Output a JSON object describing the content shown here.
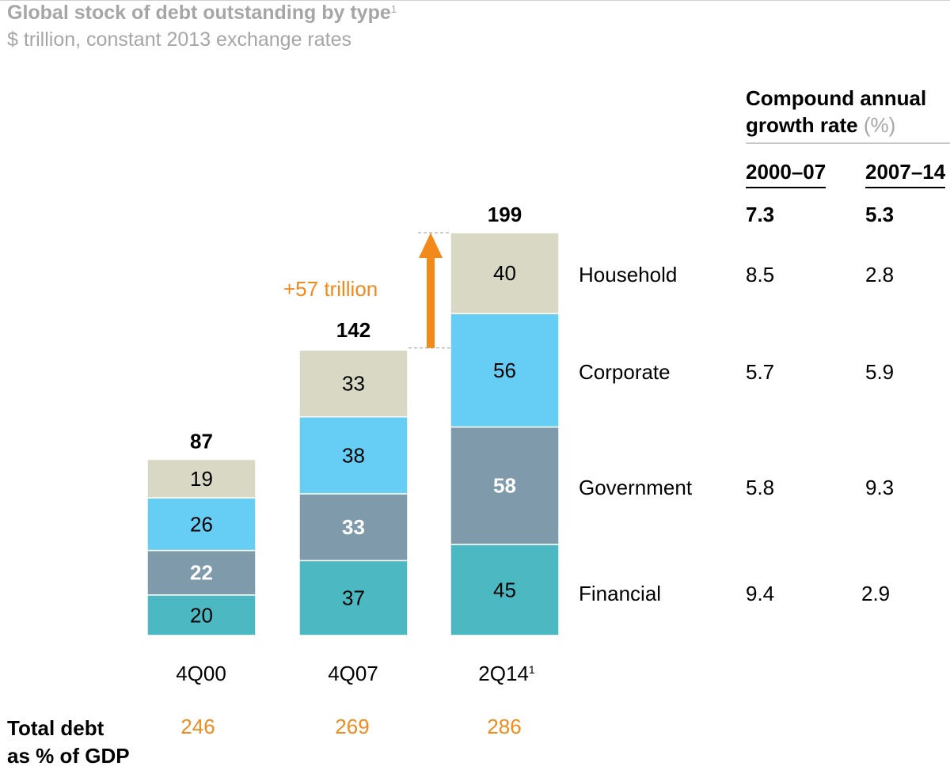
{
  "title": "Global stock of debt outstanding by type",
  "title_footnote": "1",
  "subtitle": "$ trillion, constant 2013 exchange rates",
  "chart_data": {
    "type": "bar",
    "stacked": true,
    "categories": [
      "4Q00",
      "4Q07",
      "2Q14"
    ],
    "category_footnotes": [
      "",
      "",
      "1"
    ],
    "series": [
      {
        "name": "Financial",
        "values": [
          20,
          37,
          45
        ],
        "color": "#4bb8c2"
      },
      {
        "name": "Government",
        "values": [
          22,
          33,
          58
        ],
        "color": "#7f9aab"
      },
      {
        "name": "Corporate",
        "values": [
          26,
          38,
          56
        ],
        "color": "#66cdf4"
      },
      {
        "name": "Household",
        "values": [
          19,
          33,
          40
        ],
        "color": "#d9d8c4"
      }
    ],
    "totals": [
      87,
      142,
      199
    ],
    "bold_series": "Government",
    "annotation": "+57 trillion",
    "annotation_color": "#f28a1b",
    "ylim": [
      0,
      199
    ]
  },
  "cagr": {
    "heading_line1": "Compound annual",
    "heading_line2": "growth rate",
    "heading_unit": "(%)",
    "periods": [
      "2000–07",
      "2007–14"
    ],
    "total": [
      "7.3",
      "5.3"
    ],
    "rows": [
      {
        "label": "Household",
        "values": [
          "8.5",
          "2.8"
        ]
      },
      {
        "label": "Corporate",
        "values": [
          "5.7",
          "5.9"
        ]
      },
      {
        "label": "Government",
        "values": [
          "5.8",
          "9.3"
        ]
      },
      {
        "label": "Financial",
        "values": [
          "9.4",
          "2.9"
        ]
      }
    ]
  },
  "footer": {
    "label_line1": "Total debt",
    "label_line2": "as % of GDP",
    "values": [
      "246",
      "269",
      "286"
    ]
  },
  "colors": {
    "accent": "#f28a1b",
    "muted_text": "#a6a6a6"
  }
}
